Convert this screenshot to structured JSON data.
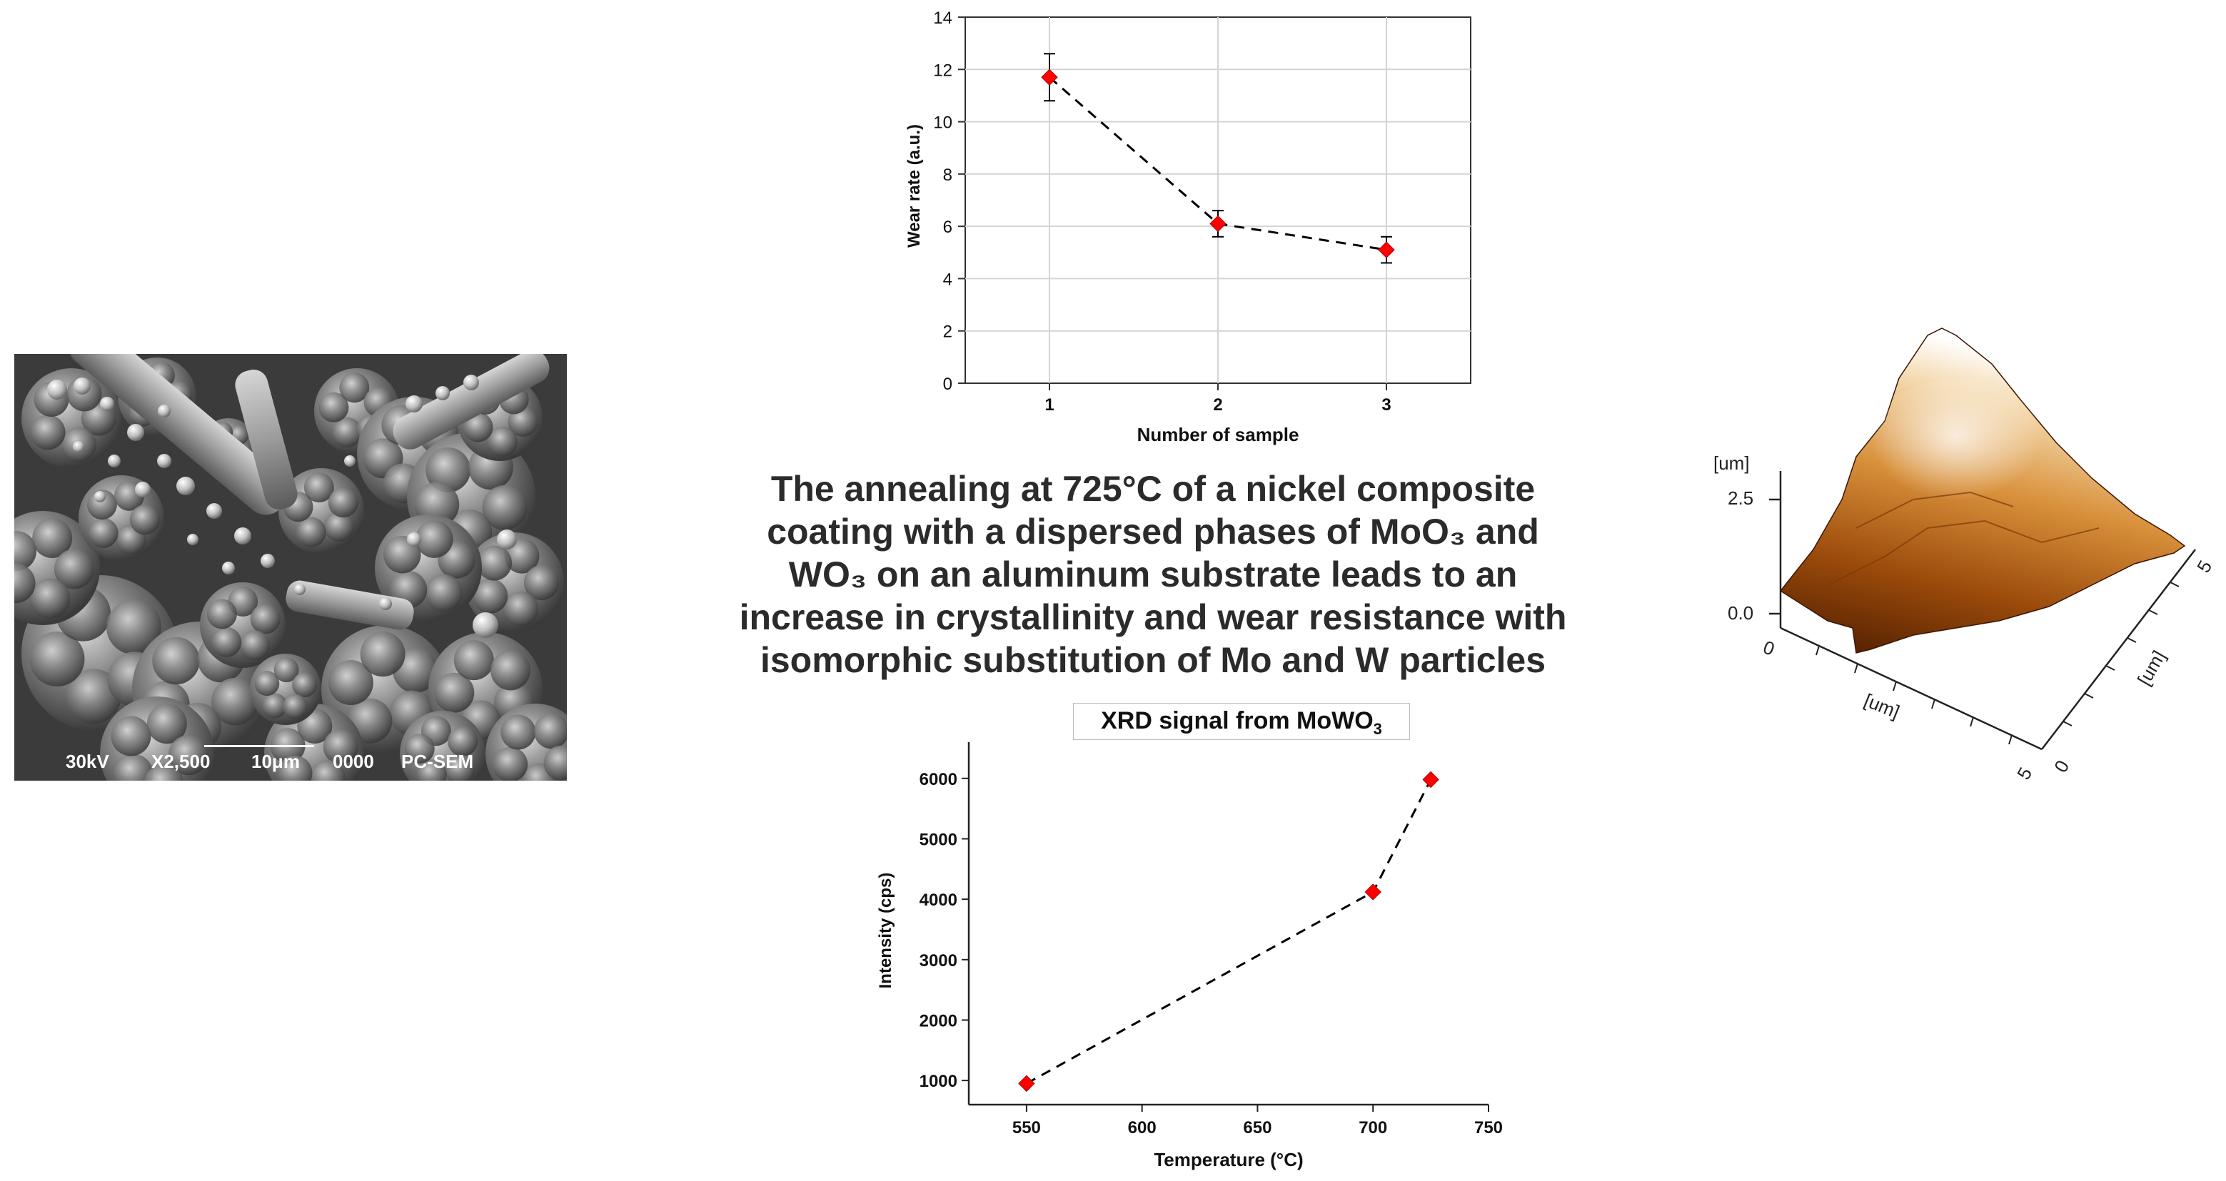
{
  "headline": {
    "lines": [
      "The annealing at 725°C of a nickel composite",
      "coating with a dispersed phases of MoO₃ and",
      "WO₃ on an aluminum substrate leads to an",
      "increase in crystallinity and wear resistance with",
      "isomorphic substitution of Mo and W particles"
    ]
  },
  "sem": {
    "labels": [
      "30kV",
      "X2,500",
      "10μm",
      "0000",
      "PC-SEM"
    ]
  },
  "afm": {
    "z_unit": "[um]",
    "z_max": "2.5",
    "z_min": "0.0",
    "x_unit": "[um]",
    "y_unit": "[um]",
    "x_start": "0",
    "x_end": "5",
    "y_start": "0",
    "y_end": "5",
    "colors": [
      "#4a1a00",
      "#9a4a0a",
      "#d8903a",
      "#f3d6a8",
      "#ffffff"
    ]
  },
  "xrd_title": {
    "main": "XRD signal from MoWO",
    "sub": "3"
  },
  "chart_data": [
    {
      "type": "line",
      "xlabel": "Number of sample",
      "ylabel": "Wear rate (a.u.)",
      "categories": [
        "1",
        "2",
        "3"
      ],
      "x": [
        1,
        2,
        3
      ],
      "values": [
        11.7,
        6.1,
        5.1
      ],
      "error": [
        0.9,
        0.5,
        0.5
      ],
      "xlim": [
        0.5,
        3.5
      ],
      "ylim": [
        0,
        14
      ],
      "yticks": [
        0,
        2,
        4,
        6,
        8,
        10,
        12,
        14
      ],
      "grid": true,
      "line_style": "dashed",
      "marker": "diamond",
      "marker_color": "#ff0000"
    },
    {
      "type": "line",
      "title": "XRD signal from MoWO3",
      "xlabel": "Temperature  (°C)",
      "ylabel": "Intensity (cps)",
      "x": [
        550,
        700,
        725
      ],
      "values": [
        950,
        4120,
        5980
      ],
      "xlim": [
        525,
        750
      ],
      "ylim": [
        600,
        6600
      ],
      "xticks": [
        550,
        600,
        650,
        700,
        750
      ],
      "yticks": [
        1000,
        2000,
        3000,
        4000,
        5000,
        6000
      ],
      "grid": false,
      "line_style": "dashed",
      "marker": "diamond",
      "marker_color": "#ff0000"
    }
  ]
}
